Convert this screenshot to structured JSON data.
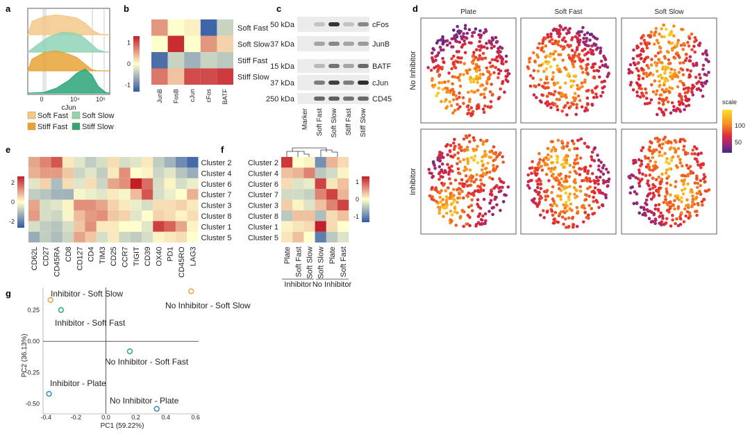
{
  "panel_labels": {
    "a": "a",
    "b": "b",
    "c": "c",
    "d": "d",
    "e": "e",
    "f": "f",
    "g": "g"
  },
  "panel_a": {
    "xlabel": "cJun",
    "ticks": [
      "0",
      "10⁴",
      "10⁵"
    ],
    "legend": [
      {
        "label": "Soft Fast",
        "color": "#f3c889"
      },
      {
        "label": "Soft Slow",
        "color": "#8fd3b6"
      },
      {
        "label": "Stiff Fast",
        "color": "#e6a33a"
      },
      {
        "label": "Stiff Slow",
        "color": "#2aa67a"
      }
    ]
  },
  "panel_b": {
    "rows": [
      "Soft Fast",
      "Soft Slow",
      "Stiff Fast",
      "Stiff Slow"
    ],
    "cols": [
      "JunB",
      "FosB",
      "cJun",
      "cFos",
      "BATF"
    ],
    "values": [
      [
        0.7,
        0.0,
        0.1,
        -1.4,
        -0.4
      ],
      [
        0.0,
        1.4,
        0.0,
        0.7,
        0.3
      ],
      [
        -1.3,
        -0.4,
        -0.7,
        -0.4,
        -0.5
      ],
      [
        0.9,
        0.4,
        1.2,
        1.2,
        1.3
      ]
    ],
    "scale_ticks": [
      "1",
      "0",
      "-1"
    ]
  },
  "panel_c": {
    "kda": [
      "50 kDa",
      "37 kDa",
      "15 kDa",
      "37 kDa",
      "250 kDa"
    ],
    "proteins": [
      "cFos",
      "JunB",
      "BATF",
      "cJun",
      "CD45"
    ],
    "lanes": [
      "Marker",
      "Soft Fast",
      "Soft Slow",
      "Stiff Fast",
      "Stiff Slow"
    ]
  },
  "panel_d": {
    "cols": [
      "Plate",
      "Soft Fast",
      "Soft Slow"
    ],
    "rows": [
      "No Inhibitor",
      "Inhibitor"
    ],
    "scale_title": "scale",
    "scale_ticks": [
      "100",
      "50"
    ]
  },
  "panel_e": {
    "rows": [
      "Cluster 2",
      "Cluster 4",
      "Cluster 6",
      "Cluster 7",
      "Cluster 3",
      "Cluster 8",
      "Cluster 1",
      "Cluster 5"
    ],
    "cols": [
      "CD62L",
      "CD27",
      "CD45RA",
      "CD8",
      "CD127",
      "CD4",
      "TIM3",
      "CD25",
      "CCR7",
      "TIGIT",
      "CD39",
      "OX40",
      "PD1",
      "CD45RO",
      "LAG3"
    ],
    "values": [
      [
        0.8,
        1.1,
        1.5,
        0.2,
        -0.3,
        -0.6,
        -0.4,
        0.3,
        -0.4,
        -0.3,
        0.2,
        -0.6,
        -0.9,
        -1.4,
        -1.8
      ],
      [
        0.7,
        0.9,
        0.9,
        0.5,
        -0.5,
        -0.3,
        -0.6,
        0.2,
        1.0,
        0.0,
        0.1,
        -0.5,
        -0.3,
        -0.7,
        -1.0
      ],
      [
        -0.3,
        0.4,
        -0.8,
        0.3,
        -0.3,
        0.3,
        -0.5,
        0.8,
        1.0,
        2.0,
        1.3,
        -0.4,
        0.1,
        -0.4,
        -0.2
      ],
      [
        -0.6,
        -0.7,
        -0.9,
        -0.9,
        -0.1,
        -0.2,
        -0.3,
        0.2,
        -0.1,
        0.6,
        1.5,
        -0.4,
        -0.2,
        0.0,
        0.7
      ],
      [
        0.8,
        -0.4,
        -0.3,
        0.1,
        1.0,
        1.0,
        0.8,
        0.4,
        0.2,
        -0.2,
        -0.4,
        0.3,
        0.3,
        0.4,
        0.2
      ],
      [
        0.9,
        -0.4,
        -0.5,
        -0.1,
        0.6,
        0.9,
        1.0,
        0.5,
        0.4,
        -0.3,
        0.0,
        0.4,
        0.3,
        0.1,
        0.3
      ],
      [
        -0.4,
        -0.6,
        -0.7,
        -0.4,
        0.5,
        1.0,
        0.2,
        0.2,
        0.0,
        0.0,
        -0.3,
        1.7,
        1.4,
        0.8,
        0.1
      ],
      [
        -1.0,
        -0.6,
        -0.8,
        -0.5,
        0.8,
        0.5,
        -0.4,
        0.2,
        -0.5,
        -0.6,
        -0.4,
        0.1,
        0.2,
        0.3,
        0.0
      ]
    ],
    "scale_ticks": [
      "2",
      "0",
      "-2"
    ]
  },
  "panel_f": {
    "rows": [
      "Cluster 2",
      "Cluster 4",
      "Cluster 6",
      "Cluster 7",
      "Cluster 3",
      "Cluster 8",
      "Cluster 1",
      "Cluster 5"
    ],
    "cols": [
      "Plate",
      "Soft Fast",
      "Soft Slow",
      "Soft Slow",
      "Plate",
      "Soft Fast"
    ],
    "groups": [
      "Inhibitor",
      "No Inhibitor"
    ],
    "values": [
      [
        1.6,
        0.0,
        0.1,
        -1.2,
        0.6,
        0.3
      ],
      [
        0.5,
        0.6,
        1.0,
        -0.6,
        -0.4,
        0.1
      ],
      [
        0.3,
        -0.3,
        -0.2,
        1.5,
        0.2,
        0.5
      ],
      [
        -0.4,
        -0.4,
        -0.5,
        1.0,
        1.5,
        0.6
      ],
      [
        0.4,
        0.1,
        -0.3,
        0.5,
        1.0,
        1.5
      ],
      [
        -0.6,
        0.5,
        0.5,
        -0.7,
        0.3,
        0.5
      ],
      [
        0.1,
        0.2,
        0.3,
        1.8,
        0.3,
        0.0
      ],
      [
        0.2,
        0.5,
        0.0,
        -1.4,
        -0.6,
        -0.3
      ]
    ],
    "scale_ticks": [
      "1",
      "0",
      "-1"
    ]
  },
  "panel_g": {
    "xlabel": "PC1 (59.22%)",
    "ylabel": "PC2 (36.13%)",
    "xticks": [
      "-0.4",
      "-0.2",
      "0.0",
      "0.2",
      "0.4",
      "0.6"
    ],
    "yticks": [
      "0.25",
      "0.00",
      "-0.25",
      "-0.50"
    ]
  },
  "chart_data": [
    {
      "type": "scatter",
      "title": "",
      "xlabel": "PC1 (59.22%)",
      "ylabel": "PC2 (36.13%)",
      "xlim": [
        -0.42,
        0.62
      ],
      "ylim": [
        -0.58,
        0.43
      ],
      "points": [
        {
          "label": "Inhibitor - Soft Slow",
          "x": -0.37,
          "y": 0.33,
          "color": "#e8a33a"
        },
        {
          "label": "No Inhibitor - Soft Slow",
          "x": 0.57,
          "y": 0.4,
          "color": "#e8a33a"
        },
        {
          "label": "Inhibitor - Soft Fast",
          "x": -0.3,
          "y": 0.25,
          "color": "#2aa67a"
        },
        {
          "label": "No Inhibitor - Soft Fast",
          "x": 0.16,
          "y": -0.08,
          "color": "#2aa67a"
        },
        {
          "label": "Inhibitor - Plate",
          "x": -0.38,
          "y": -0.42,
          "color": "#2f8bbf"
        },
        {
          "label": "No Inhibitor - Plate",
          "x": 0.34,
          "y": -0.54,
          "color": "#2f8bbf"
        }
      ]
    }
  ]
}
